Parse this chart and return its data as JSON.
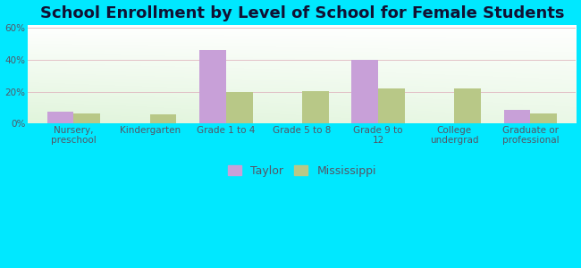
{
  "title": "School Enrollment by Level of School for Female Students",
  "categories": [
    "Nursery,\npreschool",
    "Kindergarten",
    "Grade 1 to 4",
    "Grade 5 to 8",
    "Grade 9 to\n12",
    "College\nundergrad",
    "Graduate or\nprofessional"
  ],
  "taylor": [
    7.5,
    0,
    46,
    0,
    40,
    0,
    8.5
  ],
  "mississippi": [
    6,
    5.5,
    19.5,
    20.5,
    22,
    22,
    6.5
  ],
  "taylor_color": "#c8a0d8",
  "mississippi_color": "#b8c887",
  "background_outer": "#00e8ff",
  "ylim": [
    0,
    62
  ],
  "yticks": [
    0,
    20,
    40,
    60
  ],
  "ytick_labels": [
    "0%",
    "20%",
    "40%",
    "60%"
  ],
  "grid_color": "#e0b8c0",
  "bar_width": 0.35,
  "title_fontsize": 13,
  "tick_fontsize": 7.5,
  "legend_fontsize": 9,
  "axis_label_color": "#555566"
}
